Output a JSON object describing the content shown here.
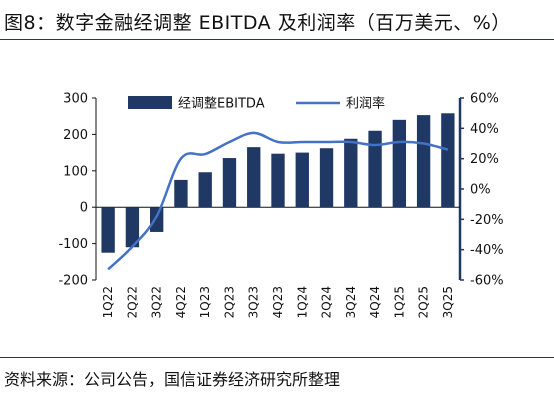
{
  "title": "图8：数字金融经调整 EBITDA 及利润率（百万美元、%）",
  "source": "资料来源：公司公告，国信证券经济研究所整理",
  "colors": {
    "bar": "#1f3864",
    "line": "#4472c4",
    "axis": "#1f3864"
  },
  "chart_data": {
    "type": "bar+line",
    "categories": [
      "1Q22",
      "2Q22",
      "3Q22",
      "4Q22",
      "1Q23",
      "2Q23",
      "3Q23",
      "4Q23",
      "1Q24",
      "2Q24",
      "3Q24",
      "4Q24",
      "1Q25",
      "2Q25",
      "3Q25"
    ],
    "series": [
      {
        "name": "经调整EBITDA",
        "type": "bar",
        "axis": "left",
        "values": [
          -125,
          -110,
          -68,
          75,
          96,
          135,
          165,
          147,
          150,
          162,
          188,
          210,
          240,
          253,
          258
        ]
      },
      {
        "name": "利润率",
        "type": "line",
        "axis": "right",
        "values": [
          -53,
          -38,
          -18,
          20,
          23,
          31,
          37,
          31,
          31,
          31,
          31,
          29,
          31,
          30,
          26
        ]
      }
    ],
    "yleft": {
      "lim": [
        -200,
        300
      ],
      "ticks": [
        -200,
        -100,
        0,
        100,
        200,
        300
      ]
    },
    "yright": {
      "lim": [
        -60,
        60
      ],
      "ticks": [
        -60,
        -40,
        -20,
        0,
        20,
        40,
        60
      ],
      "unit": "%"
    },
    "legend_position": "top-center"
  }
}
